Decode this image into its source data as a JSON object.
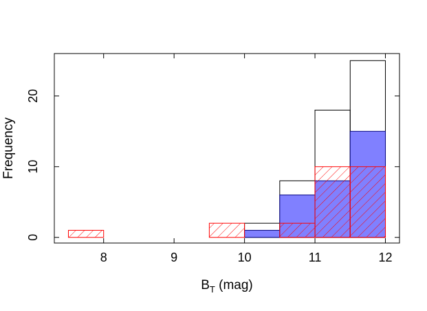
{
  "chart_data": {
    "type": "bar",
    "subtype": "overlaid-histogram",
    "title": "",
    "xlabel": "B",
    "xlabel_subscript": "T",
    "xlabel_unit": " (mag)",
    "ylabel": "Frequency",
    "xlim": [
      7.3,
      12.2
    ],
    "ylim": [
      -0.8,
      26
    ],
    "x_ticks": [
      8,
      9,
      10,
      11,
      12
    ],
    "y_ticks": [
      0,
      10,
      20
    ],
    "bin_edges": [
      7.5,
      8.0,
      8.5,
      9.0,
      9.5,
      10.0,
      10.5,
      11.0,
      11.5,
      12.0
    ],
    "series": [
      {
        "style": "outline",
        "color": "#000000",
        "values": [
          0,
          0,
          0,
          0,
          0,
          2,
          8,
          18,
          25
        ]
      },
      {
        "style": "filled",
        "color": "#8080ff",
        "edge_color": "#000080",
        "values": [
          0,
          0,
          0,
          0,
          0,
          1,
          6,
          8,
          15
        ]
      },
      {
        "style": "hatched",
        "color": "#ff0000",
        "values": [
          1,
          0,
          0,
          0,
          2,
          0,
          2,
          10,
          10
        ]
      }
    ]
  }
}
